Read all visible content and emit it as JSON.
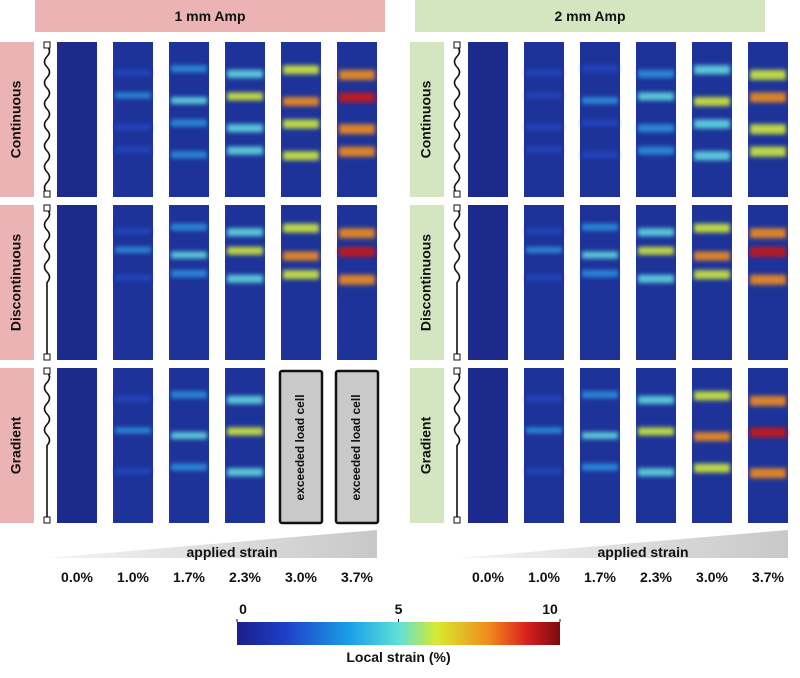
{
  "panels": [
    {
      "title": "1 mm Amp",
      "rows": [
        {
          "label": "Continuous"
        },
        {
          "label": "Discontinuous"
        },
        {
          "label": "Gradient",
          "notes": [
            "exceeded load cell",
            "exceeded load cell"
          ]
        }
      ],
      "strains": [
        "0.0%",
        "1.0%",
        "1.7%",
        "2.3%",
        "3.0%",
        "3.7%"
      ],
      "axis_label": "applied strain"
    },
    {
      "title": "2 mm Amp",
      "rows": [
        {
          "label": "Continuous"
        },
        {
          "label": "Discontinuous"
        },
        {
          "label": "Gradient"
        }
      ],
      "strains": [
        "0.0%",
        "1.0%",
        "1.7%",
        "2.3%",
        "3.0%",
        "3.7%"
      ],
      "axis_label": "applied strain"
    }
  ],
  "colorbar": {
    "label": "Local strain (%)",
    "lim": [
      0,
      10
    ],
    "ticks": [
      0,
      5,
      10
    ]
  }
}
